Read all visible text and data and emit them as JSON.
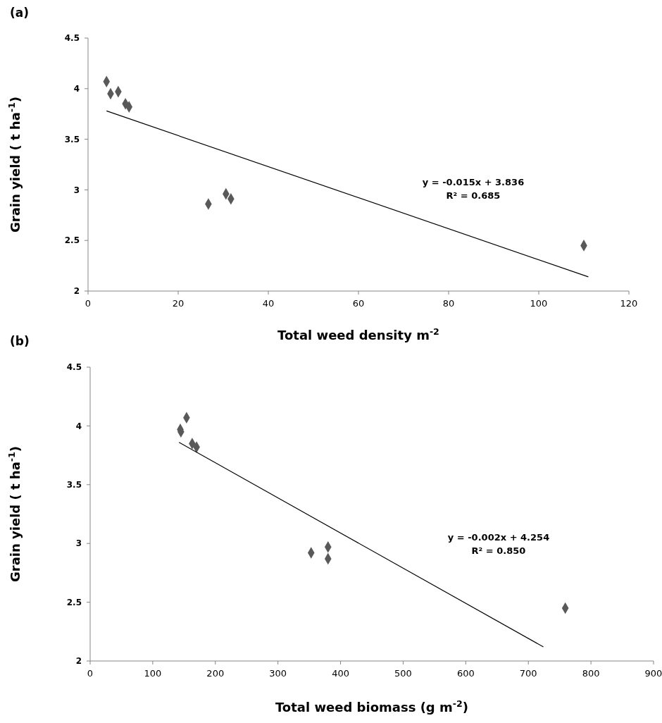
{
  "chart_data": [
    {
      "type": "scatter",
      "title": "(a)",
      "xlabel": "Total weed density m$^{-2}$",
      "ylabel": "Grain yield ( t ha$^{-1}$)",
      "xlim": [
        0,
        120
      ],
      "xticks": [
        0,
        20,
        40,
        60,
        80,
        100,
        120
      ],
      "ylim": [
        2,
        4.5
      ],
      "yticks": [
        2,
        2.5,
        3,
        3.5,
        4,
        4.5
      ],
      "grid": false,
      "annotations": [
        "y = -0.015x + 3.836",
        "R² = 0.685"
      ],
      "series": [
        {
          "marker": "diamond",
          "color": "#595959",
          "x": [
            4.1,
            5.0,
            6.7,
            8.3,
            9.1,
            26.7,
            30.6,
            31.7,
            110
          ],
          "values": [
            4.07,
            3.95,
            3.97,
            3.85,
            3.82,
            2.86,
            2.96,
            2.91,
            2.45
          ]
        },
        {
          "type": "line",
          "color": "#000000",
          "x": [
            4.1,
            111
          ],
          "values": [
            3.78,
            2.14
          ]
        }
      ]
    },
    {
      "type": "scatter",
      "title": "(b)",
      "xlabel": "Total weed biomass (g m$^{-2}$)",
      "ylabel": "Grain yield ( t ha$^{-1}$)",
      "xlim": [
        0,
        900
      ],
      "xticks": [
        0,
        100,
        200,
        300,
        400,
        500,
        600,
        700,
        800,
        900
      ],
      "ylim": [
        2,
        4.5
      ],
      "yticks": [
        2,
        2.5,
        3,
        3.5,
        4,
        4.5
      ],
      "grid": false,
      "annotations": [
        "y = -0.002x + 4.254",
        "R² = 0.850"
      ],
      "series": [
        {
          "marker": "diamond",
          "color": "#595959",
          "x": [
            154,
            144,
            145,
            163,
            170,
            380,
            380,
            353,
            759
          ],
          "values": [
            4.07,
            3.97,
            3.95,
            3.85,
            3.82,
            2.87,
            2.97,
            2.92,
            2.45
          ]
        },
        {
          "type": "line",
          "color": "#000000",
          "x": [
            142,
            724
          ],
          "values": [
            3.86,
            2.12
          ]
        }
      ]
    }
  ]
}
